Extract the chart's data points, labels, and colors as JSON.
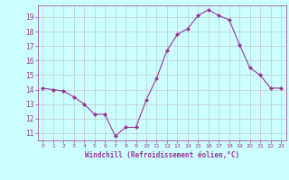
{
  "hours": [
    0,
    1,
    2,
    3,
    4,
    5,
    6,
    7,
    8,
    9,
    10,
    11,
    12,
    13,
    14,
    15,
    16,
    17,
    18,
    19,
    20,
    21,
    22,
    23
  ],
  "values": [
    14.1,
    14.0,
    13.9,
    13.5,
    13.0,
    12.3,
    12.3,
    10.8,
    11.4,
    11.4,
    13.3,
    14.8,
    16.7,
    17.8,
    18.2,
    19.1,
    19.5,
    19.1,
    18.8,
    17.1,
    15.5,
    15.0,
    14.1,
    14.1
  ],
  "line_color": "#993399",
  "marker": "D",
  "marker_size": 2,
  "bg_color": "#ccffff",
  "grid_color": "#bbbbbb",
  "xlabel": "Windchill (Refroidissement éolien,°C)",
  "xlabel_color": "#993399",
  "tick_color": "#993399",
  "ylim": [
    10.5,
    19.8
  ],
  "yticks": [
    11,
    12,
    13,
    14,
    15,
    16,
    17,
    18,
    19
  ],
  "xlim": [
    -0.5,
    23.5
  ],
  "figsize": [
    3.2,
    2.0
  ],
  "dpi": 100
}
